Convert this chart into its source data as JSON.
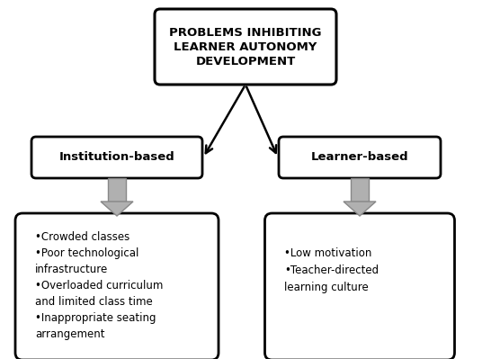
{
  "title_text": "PROBLEMS INHIBITING\nLEARNER AUTONOMY\nDEVELOPMENT",
  "left_box_text": "Institution-based",
  "right_box_text": "Learner-based",
  "left_detail_text": "•Crowded classes\n•Poor technological\ninfrastructure\n•Overloaded curriculum\nand limited class time\n•Inappropriate seating\narrangement",
  "right_detail_text": "•Low motivation\n•Teacher-directed\nlearning culture",
  "bg_color": "#ffffff",
  "box_edge_color": "#000000",
  "title_fontsize": 9.5,
  "sub_fontsize": 9.5,
  "detail_fontsize": 8.5,
  "arrow_color": "#b0b0b0",
  "line_color": "#000000"
}
